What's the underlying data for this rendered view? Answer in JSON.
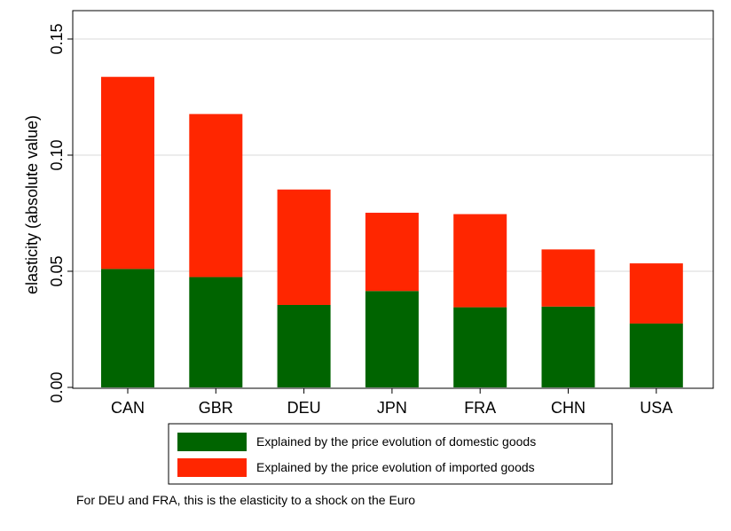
{
  "chart_data": {
    "type": "bar",
    "stacked": true,
    "categories": [
      "CAN",
      "GBR",
      "DEU",
      "JPN",
      "FRA",
      "CHN",
      "USA"
    ],
    "series": [
      {
        "name": "Explained by the price evolution of domestic goods",
        "color": "#006400",
        "values": [
          0.051,
          0.0475,
          0.0355,
          0.0415,
          0.0345,
          0.0348,
          0.0275
        ]
      },
      {
        "name": "Explained by the price evolution of imported goods",
        "color": "#ff2600",
        "values": [
          0.0827,
          0.0702,
          0.0497,
          0.0337,
          0.0401,
          0.0246,
          0.0259
        ]
      }
    ],
    "ylabel": "elasticity (absolute value)",
    "yticks": [
      "0.00",
      "0.05",
      "0.10",
      "0.15"
    ],
    "ylim": [
      0,
      0.15
    ],
    "grid": true,
    "legend_position": "bottom"
  },
  "note": "For DEU and FRA, this is the elasticity to a shock on the Euro"
}
